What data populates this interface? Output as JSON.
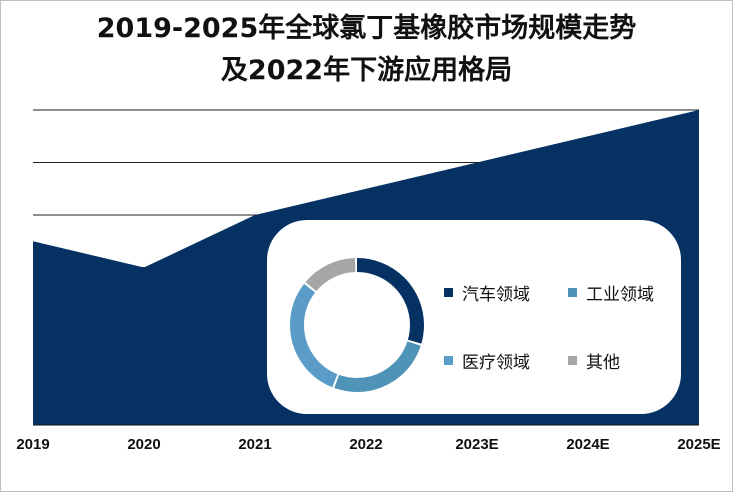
{
  "title_line1": "2019-2025年全球氯丁基橡胶市场规模走势",
  "title_line2": "及2022年下游应用格局",
  "chart_data": [
    {
      "type": "area",
      "categories": [
        "2019",
        "2020",
        "2021",
        "2022",
        "2023E",
        "2024E",
        "2025E"
      ],
      "values": [
        3.5,
        3.0,
        4.0,
        4.5,
        5.0,
        5.5,
        6.0
      ],
      "ylim": [
        0,
        6.0
      ],
      "grid": true,
      "color": "#053263"
    },
    {
      "type": "pie",
      "donut": true,
      "legend": [
        {
          "label": "汽车领域",
          "value": 30,
          "color": "#053263"
        },
        {
          "label": "工业领域",
          "value": 26,
          "color": "#4f93b8"
        },
        {
          "label": "医疗领域",
          "value": 30,
          "color": "#5a9cc7"
        },
        {
          "label": "其他",
          "value": 14,
          "color": "#a6a6a6"
        }
      ]
    }
  ]
}
